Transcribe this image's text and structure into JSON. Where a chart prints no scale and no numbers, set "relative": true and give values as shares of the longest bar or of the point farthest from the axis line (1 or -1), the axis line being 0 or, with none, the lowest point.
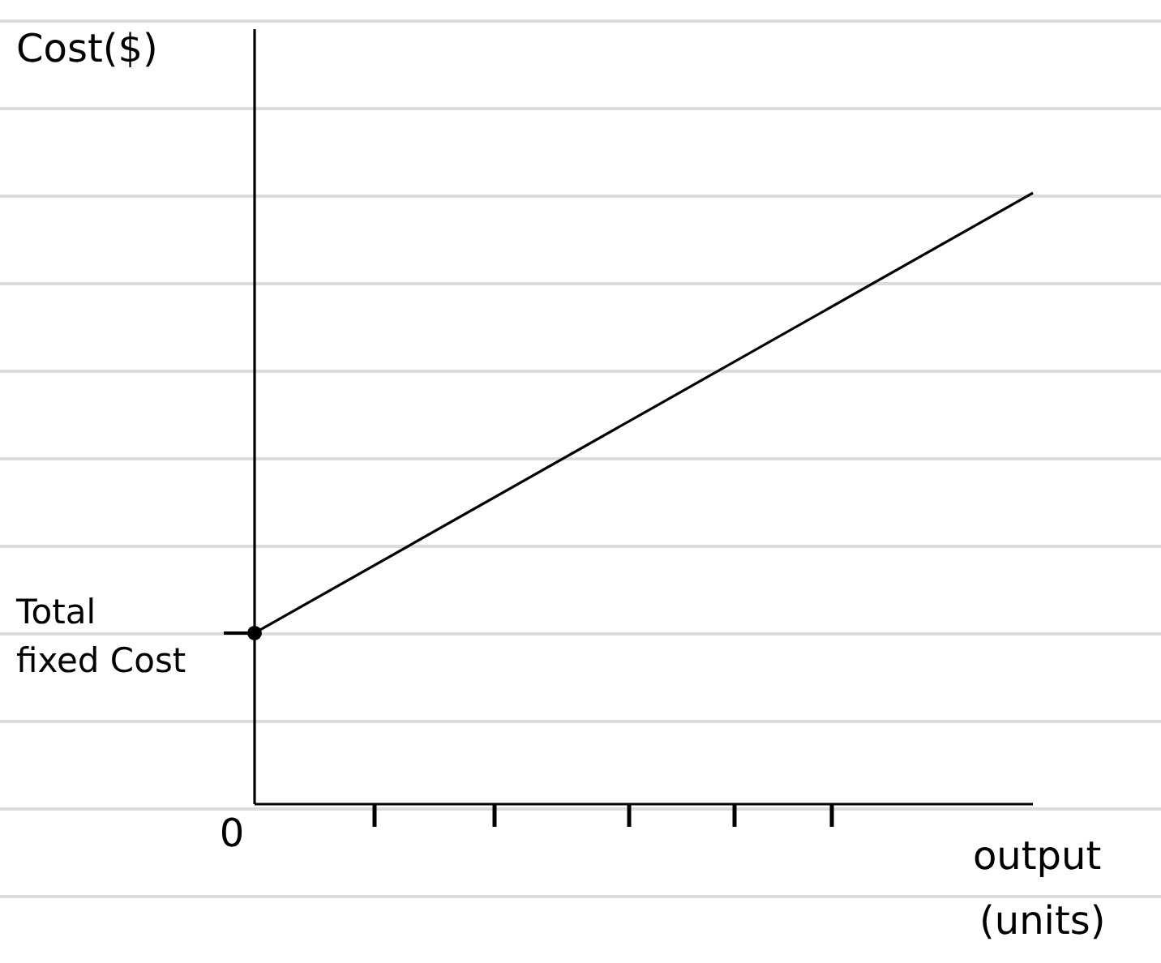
{
  "chart_data": {
    "type": "line",
    "relative": true,
    "ylabel": "Cost($)",
    "xlabel": "output (units)",
    "categories": [
      null,
      null
    ],
    "series": [
      {
        "color": "#000000",
        "values": [
          0.28,
          1
        ]
      }
    ],
    "annotations": [
      "0",
      "Total fixed Cost"
    ]
  }
}
